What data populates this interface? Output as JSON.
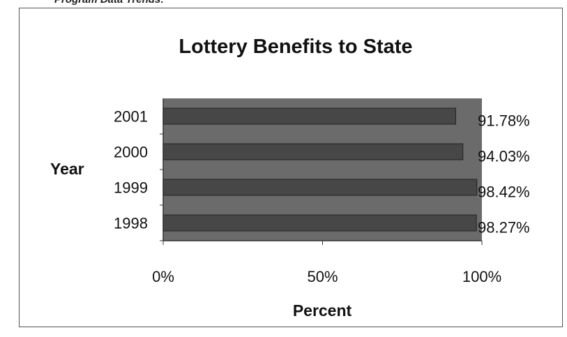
{
  "page": {
    "caption": "Program Data Trends:"
  },
  "chart_data": {
    "type": "bar",
    "orientation": "horizontal",
    "title": "Lottery Benefits to State",
    "xlabel": "Percent",
    "ylabel": "Year",
    "categories": [
      "1998",
      "1999",
      "2000",
      "2001"
    ],
    "values": [
      98.27,
      98.42,
      94.03,
      91.78
    ],
    "data_labels": [
      "98.27%",
      "98.42%",
      "94.03%",
      "91.78%"
    ],
    "xlim": [
      0,
      100
    ],
    "x_ticks": [
      0,
      50,
      100
    ],
    "x_tick_labels": [
      "0%",
      "50%",
      "100%"
    ],
    "grid": false,
    "legend": "none",
    "colors": {
      "plot_area": "#6b6b6b",
      "bar": "#474747",
      "bar_edge": "#222222",
      "axis": "#333333"
    }
  }
}
